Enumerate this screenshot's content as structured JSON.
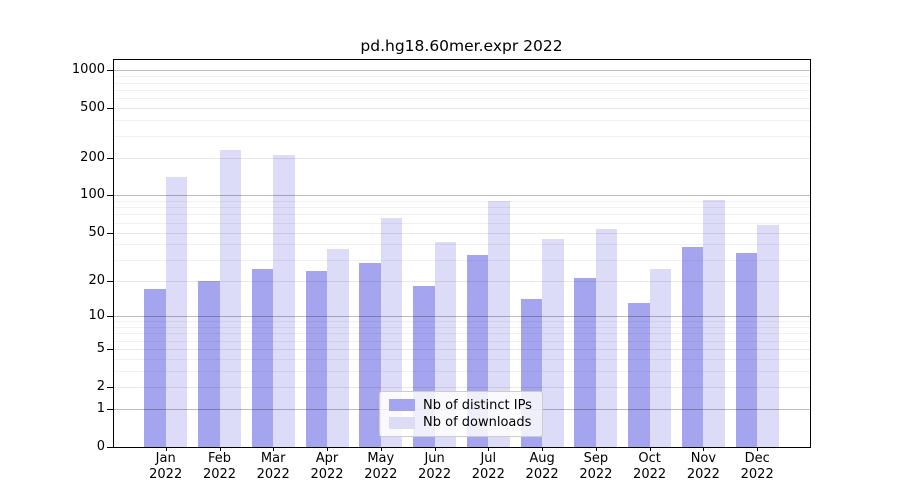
{
  "chart_data": {
    "type": "bar",
    "title": "pd.hg18.60mer.expr 2022",
    "categories": [
      "Jan",
      "Feb",
      "Mar",
      "Apr",
      "May",
      "Jun",
      "Jul",
      "Aug",
      "Sep",
      "Oct",
      "Nov",
      "Dec"
    ],
    "x_sublabel": "2022",
    "series": [
      {
        "name": "Nb of distinct IPs",
        "color": "#a5a5ef",
        "values": [
          17,
          20,
          25,
          24,
          28,
          18,
          33,
          14,
          21,
          13,
          38,
          34
        ]
      },
      {
        "name": "Nb of downloads",
        "color": "#dcdcf8",
        "values": [
          140,
          230,
          210,
          37,
          65,
          42,
          90,
          44,
          53,
          25,
          92,
          58
        ]
      }
    ],
    "yaxis": {
      "tick_labels": [
        "1000",
        "500",
        "200",
        "100",
        "50",
        "20",
        "10",
        "5",
        "2",
        "1",
        "0"
      ],
      "tick_values": [
        1000,
        500,
        200,
        100,
        50,
        20,
        10,
        5,
        2,
        1,
        0
      ],
      "minor_grid_values": [
        3,
        4,
        6,
        7,
        8,
        9,
        30,
        40,
        60,
        70,
        80,
        90,
        300,
        400,
        600,
        700,
        800,
        900
      ],
      "power10_values": [
        1,
        10,
        100,
        1000
      ],
      "ylim": [
        0,
        1000
      ],
      "scale": "log10(1+y) with 0 at baseline",
      "grid": "horizontal"
    },
    "legend": {
      "position": "lower-center",
      "entries": [
        "Nb of distinct IPs",
        "Nb of downloads"
      ]
    }
  },
  "colors": {
    "background": "#ffffff",
    "text": "#000000",
    "axis_frame": "#000000",
    "legend_border": "#cccccc",
    "grid_power10_rgba": "rgba(0,0,0,0.26)",
    "grid_labeled_rgba": "rgba(0,0,0,0.09)",
    "grid_minor_rgba": "rgba(0,0,0,0.055)"
  }
}
